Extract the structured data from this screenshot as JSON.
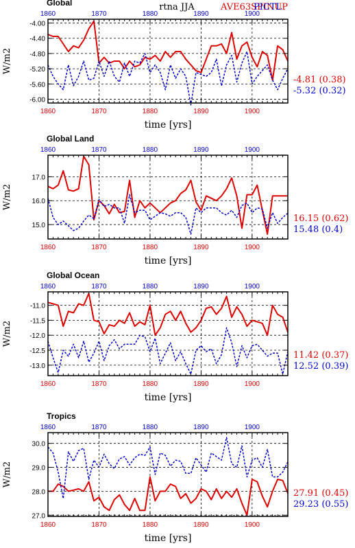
{
  "header": {
    "center_text": "rtna  JJA",
    "model_a": "AVE63SPINUP",
    "model_b": "PICTL",
    "color_a": "#dd0000",
    "color_b": "#0000cc"
  },
  "chart_data": [
    {
      "type": "line",
      "title": "Global",
      "xlabel": "time [yrs]",
      "ylabel": "W/m2",
      "xlim": [
        1860,
        1907
      ],
      "ylim": [
        -6.1,
        -3.9
      ],
      "x_ticks": [
        "1860",
        "1870",
        "1880",
        "1890",
        "1900"
      ],
      "y_ticks": [
        "-4.00",
        "-4.40",
        "-4.80",
        "-5.20",
        "-5.60",
        "-6.00"
      ],
      "y_tick_values": [
        -4.0,
        -4.4,
        -4.8,
        -5.2,
        -5.6,
        -6.0
      ],
      "grid": "dashed",
      "series": [
        {
          "name": "AVE63SPINUP",
          "color": "#dd0000",
          "style": "solid",
          "x_start": 1860,
          "values": [
            -4.3,
            -4.35,
            -4.35,
            -4.55,
            -4.75,
            -4.6,
            -4.65,
            -4.45,
            -4.15,
            -3.95,
            -5.05,
            -4.9,
            -5.05,
            -5.0,
            -5.0,
            -5.2,
            -5.0,
            -5.15,
            -5.1,
            -4.9,
            -4.95,
            -4.85,
            -5.0,
            -4.75,
            -4.9,
            -4.75,
            -4.75,
            -4.95,
            -5.1,
            -5.25,
            -5.3,
            -4.95,
            -4.6,
            -4.6,
            -4.55,
            -4.8,
            -4.25,
            -4.95,
            -4.6,
            -4.5,
            -4.9,
            -5.15,
            -4.75,
            -4.85,
            -5.5,
            -4.6,
            -4.7,
            -5.0
          ],
          "last_label": "-4.81 (0.38)"
        },
        {
          "name": "PICTL",
          "color": "#0000cc",
          "style": "dashed",
          "x_start": 1860,
          "values": [
            -5.1,
            -5.4,
            -5.6,
            -5.75,
            -5.1,
            -5.65,
            -5.4,
            -5.0,
            -5.5,
            -5.45,
            -5.0,
            -5.4,
            -5.0,
            -5.4,
            -5.55,
            -5.05,
            -5.4,
            -5.0,
            -5.05,
            -4.8,
            -5.3,
            -5.1,
            -5.3,
            -5.75,
            -5.1,
            -5.45,
            -5.2,
            -5.4,
            -6.15,
            -5.3,
            -5.35,
            -5.4,
            -5.3,
            -4.95,
            -5.65,
            -5.1,
            -4.85,
            -5.55,
            -5.05,
            -4.75,
            -5.6,
            -5.4,
            -5.25,
            -5.1,
            -5.5,
            -5.75,
            -5.45,
            -5.2
          ],
          "last_label": "-5.32 (0.32)"
        }
      ]
    },
    {
      "type": "line",
      "title": "Global Land",
      "xlabel": "time [yrs]",
      "ylabel": "W/m2",
      "xlim": [
        1860,
        1907
      ],
      "ylim": [
        14.4,
        17.9
      ],
      "x_ticks": [
        "1860",
        "1870",
        "1880",
        "1890",
        "1900"
      ],
      "y_ticks": [
        "17.0",
        "16.0",
        "15.0"
      ],
      "y_tick_values": [
        17.0,
        16.0,
        15.0
      ],
      "grid": "dashed",
      "series": [
        {
          "name": "AVE63SPINUP",
          "color": "#dd0000",
          "style": "solid",
          "x_start": 1860,
          "values": [
            16.6,
            16.5,
            16.65,
            17.25,
            16.45,
            16.4,
            16.5,
            17.85,
            17.5,
            15.2,
            16.0,
            15.8,
            15.45,
            15.85,
            15.5,
            15.55,
            16.85,
            15.3,
            16.0,
            15.7,
            15.9,
            15.7,
            15.5,
            15.7,
            15.9,
            16.0,
            16.3,
            16.45,
            16.85,
            15.95,
            15.6,
            16.2,
            16.1,
            16.0,
            16.2,
            16.5,
            16.95,
            16.2,
            14.85,
            16.25,
            16.25,
            16.65,
            15.6,
            14.6,
            16.2,
            16.2,
            16.2,
            16.2
          ],
          "last_label": "16.15 (0.62)"
        },
        {
          "name": "PICTL",
          "color": "#0000cc",
          "style": "dashed",
          "x_start": 1860,
          "values": [
            16.1,
            15.3,
            15.0,
            15.15,
            14.95,
            14.75,
            14.85,
            15.15,
            15.4,
            15.25,
            16.05,
            15.75,
            15.85,
            15.7,
            15.7,
            15.05,
            16.25,
            15.5,
            15.6,
            15.6,
            15.2,
            15.35,
            15.5,
            15.45,
            15.35,
            15.5,
            15.5,
            15.3,
            14.6,
            15.7,
            15.5,
            15.7,
            15.7,
            15.7,
            15.5,
            15.4,
            15.6,
            15.3,
            15.8,
            15.9,
            15.5,
            15.7,
            15.65,
            14.85,
            15.5,
            15.05,
            15.3,
            15.48
          ],
          "last_label": "15.48 (0.4)"
        }
      ]
    },
    {
      "type": "line",
      "title": "Global Ocean",
      "xlabel": "time [yrs]",
      "ylabel": "W/m2",
      "xlim": [
        1860,
        1907
      ],
      "ylim": [
        -13.35,
        -10.55
      ],
      "x_ticks": [
        "1860",
        "1870",
        "1880",
        "1890",
        "1900"
      ],
      "y_ticks": [
        "-11.0",
        "-11.5",
        "-12.0",
        "-12.5",
        "-13.0"
      ],
      "y_tick_values": [
        -11.0,
        -11.5,
        -12.0,
        -12.5,
        -13.0
      ],
      "grid": "dashed",
      "series": [
        {
          "name": "AVE63SPINUP",
          "color": "#dd0000",
          "style": "solid",
          "x_start": 1860,
          "values": [
            -10.9,
            -10.95,
            -11.0,
            -11.7,
            -11.2,
            -11.25,
            -10.95,
            -11.0,
            -10.6,
            -11.5,
            -11.55,
            -11.95,
            -11.65,
            -11.7,
            -11.5,
            -11.6,
            -11.25,
            -11.7,
            -11.55,
            -11.65,
            -11.0,
            -12.0,
            -11.75,
            -11.3,
            -11.2,
            -11.5,
            -11.2,
            -11.6,
            -11.9,
            -11.75,
            -11.5,
            -11.1,
            -11.05,
            -11.3,
            -11.1,
            -10.7,
            -11.4,
            -11.05,
            -11.3,
            -11.7,
            -11.5,
            -11.55,
            -11.6,
            -12.0,
            -11.0,
            -11.3,
            -11.4,
            -11.9
          ],
          "last_label": "11.42 (0.37)"
        },
        {
          "name": "PICTL",
          "color": "#0000cc",
          "style": "dashed",
          "x_start": 1860,
          "values": [
            -12.2,
            -12.75,
            -13.25,
            -12.5,
            -12.7,
            -12.3,
            -12.75,
            -12.2,
            -12.9,
            -12.6,
            -12.2,
            -12.85,
            -12.35,
            -12.15,
            -12.45,
            -12.3,
            -12.3,
            -12.3,
            -12.0,
            -12.05,
            -12.55,
            -12.1,
            -12.95,
            -12.6,
            -12.25,
            -12.85,
            -12.55,
            -12.95,
            -13.3,
            -12.5,
            -12.35,
            -12.55,
            -12.45,
            -12.95,
            -12.65,
            -11.75,
            -12.25,
            -13.05,
            -12.35,
            -12.75,
            -12.35,
            -12.3,
            -12.5,
            -12.7,
            -12.6,
            -12.6,
            -13.3,
            -12.55
          ],
          "last_label": "12.52 (0.39)"
        }
      ]
    },
    {
      "type": "line",
      "title": "Tropics",
      "xlabel": "time [yrs]",
      "ylabel": "W/m2",
      "xlim": [
        1860,
        1907
      ],
      "ylim": [
        26.95,
        30.45
      ],
      "x_ticks": [
        "1860",
        "1870",
        "1880",
        "1890",
        "1900"
      ],
      "y_ticks": [
        "30.0",
        "29.0",
        "28.0",
        "27.0"
      ],
      "y_tick_values": [
        30.0,
        29.0,
        28.0,
        27.0
      ],
      "grid": "dashed",
      "series": [
        {
          "name": "AVE63SPINUP",
          "color": "#dd0000",
          "style": "solid",
          "x_start": 1860,
          "values": [
            28.0,
            28.0,
            28.3,
            28.2,
            28.0,
            28.05,
            28.1,
            28.0,
            28.4,
            27.6,
            27.75,
            27.35,
            27.2,
            27.65,
            27.85,
            27.45,
            27.2,
            27.7,
            27.2,
            27.2,
            28.6,
            27.6,
            28.0,
            28.0,
            28.3,
            28.2,
            27.7,
            27.9,
            27.5,
            27.7,
            28.1,
            28.0,
            27.65,
            28.1,
            27.7,
            28.0,
            27.75,
            28.1,
            27.5,
            27.0,
            28.5,
            28.4,
            27.8,
            27.35,
            28.0,
            28.5,
            28.45,
            27.91
          ],
          "last_label": "27.91 (0.45)"
        },
        {
          "name": "PICTL",
          "color": "#0000cc",
          "style": "dashed",
          "x_start": 1860,
          "values": [
            29.85,
            29.6,
            28.8,
            27.7,
            29.65,
            29.25,
            29.7,
            29.8,
            28.5,
            29.3,
            29.0,
            29.55,
            29.15,
            28.95,
            29.35,
            29.45,
            29.1,
            29.4,
            29.55,
            29.5,
            29.85,
            28.7,
            29.6,
            29.5,
            29.05,
            29.3,
            29.25,
            28.75,
            28.75,
            29.4,
            29.1,
            28.8,
            29.6,
            29.45,
            29.3,
            30.25,
            29.15,
            29.0,
            29.9,
            28.6,
            29.3,
            29.4,
            29.0,
            29.75,
            28.6,
            28.6,
            28.8,
            29.23
          ],
          "last_label": "29.23 (0.55)"
        }
      ]
    }
  ]
}
